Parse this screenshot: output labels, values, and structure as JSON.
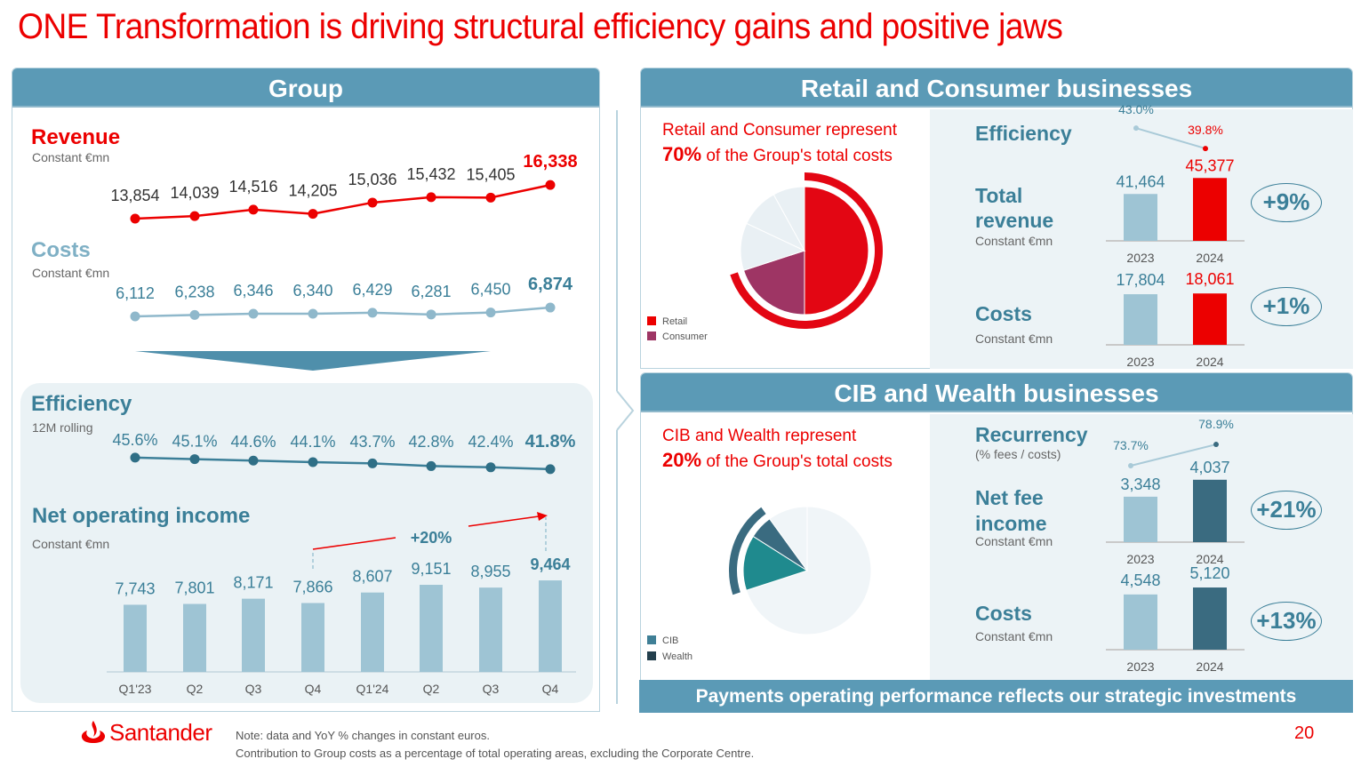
{
  "title": "ONE Transformation is driving structural efficiency gains and positive jaws",
  "group": {
    "header": "Group",
    "revenue_label": "Revenue",
    "revenue_unit": "Constant €mn",
    "costs_label": "Costs",
    "costs_unit": "Constant €mn",
    "efficiency_label": "Efficiency",
    "efficiency_unit": "12M rolling",
    "noi_label": "Net operating income",
    "noi_unit": "Constant €mn"
  },
  "retail": {
    "header": "Retail and Consumer businesses",
    "statement_line1": "Retail and Consumer represent",
    "statement_pct": "70%",
    "statement_line2": " of the Group's total costs",
    "legend": [
      "Retail",
      "Consumer"
    ],
    "efficiency_label": "Efficiency",
    "revenue_label_1": "Total",
    "revenue_label_2": "revenue",
    "revenue_unit": "Constant €mn",
    "costs_label": "Costs",
    "costs_unit": "Constant €mn",
    "revenue_change": "+9%",
    "costs_change": "+1%"
  },
  "cib": {
    "header": "CIB and Wealth businesses",
    "statement_line1": "CIB and Wealth represent",
    "statement_pct": "20%",
    "statement_line2": " of the Group's total costs",
    "legend": [
      "CIB",
      "Wealth"
    ],
    "recurrency_label": "Recurrency",
    "recurrency_unit": "(% fees / costs)",
    "nfi_label_1": "Net fee",
    "nfi_label_2": "income",
    "nfi_unit": "Constant €mn",
    "costs_label": "Costs",
    "costs_unit": "Constant €mn",
    "nfi_change": "+21%",
    "costs_change": "+13%"
  },
  "payments_banner": "Payments operating performance reflects our strategic investments",
  "footer": {
    "logo_text": "Santander",
    "note1": "Note: data and YoY % changes in constant euros.",
    "note2": "Contribution to Group costs as a percentage of total operating areas, excluding the Corporate Centre.",
    "page_number": "20"
  },
  "colors": {
    "red": "#ec0000",
    "teal": "#5b9ab6",
    "dark_teal": "#3b7f98",
    "light_bar": "#9ec4d4",
    "dark_bar": "#3a6b80",
    "consumer": "#9e3564",
    "cib": "#1f8a8e",
    "wealth": "#3a6b80"
  },
  "chart_data": [
    {
      "id": "group-revenue",
      "type": "line",
      "title": "Revenue",
      "categories": [
        "Q1'23",
        "Q2",
        "Q3",
        "Q4",
        "Q1'24",
        "Q2",
        "Q3",
        "Q4"
      ],
      "values": [
        13854,
        14039,
        14516,
        14205,
        15036,
        15432,
        15405,
        16338
      ],
      "labels": [
        "13,854",
        "14,039",
        "14,516",
        "14,205",
        "15,036",
        "15,432",
        "15,405",
        "16,338"
      ],
      "ylim": [
        13000,
        17000
      ]
    },
    {
      "id": "group-costs",
      "type": "line",
      "title": "Costs",
      "categories": [
        "Q1'23",
        "Q2",
        "Q3",
        "Q4",
        "Q1'24",
        "Q2",
        "Q3",
        "Q4"
      ],
      "values": [
        6112,
        6238,
        6346,
        6340,
        6429,
        6281,
        6450,
        6874
      ],
      "labels": [
        "6,112",
        "6,238",
        "6,346",
        "6,340",
        "6,429",
        "6,281",
        "6,450",
        "6,874"
      ],
      "ylim": [
        6000,
        7000
      ]
    },
    {
      "id": "group-efficiency",
      "type": "line",
      "title": "Efficiency",
      "categories": [
        "Q1'23",
        "Q2",
        "Q3",
        "Q4",
        "Q1'24",
        "Q2",
        "Q3",
        "Q4"
      ],
      "values": [
        45.6,
        45.1,
        44.6,
        44.1,
        43.7,
        42.8,
        42.4,
        41.8
      ],
      "labels": [
        "45.6%",
        "45.1%",
        "44.6%",
        "44.1%",
        "43.7%",
        "42.8%",
        "42.4%",
        "41.8%"
      ],
      "ylim": [
        40,
        46
      ]
    },
    {
      "id": "group-noi",
      "type": "bar",
      "title": "Net operating income",
      "categories": [
        "Q1'23",
        "Q2",
        "Q3",
        "Q4",
        "Q1'24",
        "Q2",
        "Q3",
        "Q4"
      ],
      "values": [
        7743,
        7801,
        8171,
        7866,
        8607,
        9151,
        8955,
        9464
      ],
      "labels": [
        "7,743",
        "7,801",
        "8,171",
        "7,866",
        "8,607",
        "9,151",
        "8,955",
        "9,464"
      ],
      "ylim": [
        3000,
        10000
      ],
      "annotation": "+20%"
    },
    {
      "id": "retail-costs-share",
      "type": "pie",
      "slices": [
        {
          "name": "Retail",
          "value": 50
        },
        {
          "name": "Consumer",
          "value": 20
        },
        {
          "name": "",
          "value": 12
        },
        {
          "name": "",
          "value": 10
        },
        {
          "name": "",
          "value": 8
        }
      ],
      "highlight_total": 70
    },
    {
      "id": "retail-efficiency",
      "type": "line",
      "categories": [
        "2023",
        "2024"
      ],
      "values": [
        43.0,
        39.8
      ],
      "labels": [
        "43.0%",
        "39.8%"
      ],
      "ylim": [
        38,
        44
      ]
    },
    {
      "id": "retail-revenue",
      "type": "bar",
      "categories": [
        "2023",
        "2024"
      ],
      "values": [
        41464,
        45377
      ],
      "labels": [
        "41,464",
        "45,377"
      ],
      "ylim": [
        30000,
        50000
      ]
    },
    {
      "id": "retail-costs",
      "type": "bar",
      "categories": [
        "2023",
        "2024"
      ],
      "values": [
        17804,
        18061
      ],
      "labels": [
        "17,804",
        "18,061"
      ],
      "ylim": [
        0,
        20000
      ]
    },
    {
      "id": "cib-costs-share",
      "type": "pie",
      "slices": [
        {
          "name": "",
          "value": 70
        },
        {
          "name": "CIB",
          "value": 14
        },
        {
          "name": "Wealth",
          "value": 6
        },
        {
          "name": "",
          "value": 10
        }
      ],
      "highlight_total": 20
    },
    {
      "id": "cib-recurrency",
      "type": "line",
      "categories": [
        "2023",
        "2024"
      ],
      "values": [
        73.7,
        78.9
      ],
      "labels": [
        "73.7%",
        "78.9%"
      ],
      "ylim": [
        70,
        80
      ]
    },
    {
      "id": "cib-nfi",
      "type": "bar",
      "categories": [
        "2023",
        "2024"
      ],
      "values": [
        3348,
        4037
      ],
      "labels": [
        "3,348",
        "4,037"
      ],
      "ylim": [
        1500,
        4500
      ]
    },
    {
      "id": "cib-costs",
      "type": "bar",
      "categories": [
        "2023",
        "2024"
      ],
      "values": [
        4548,
        5120
      ],
      "labels": [
        "4,548",
        "5,120"
      ],
      "ylim": [
        0,
        6000
      ]
    }
  ]
}
